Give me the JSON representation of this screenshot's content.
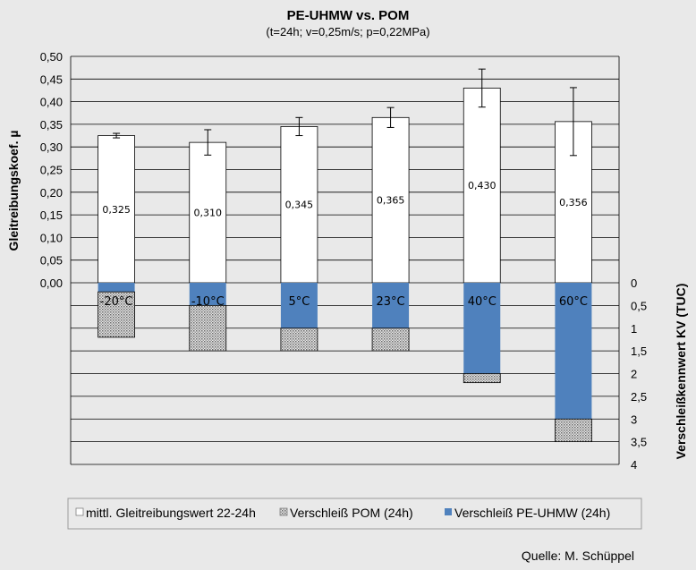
{
  "chart_data": {
    "type": "bar",
    "title": "PE-UHMW vs. POM",
    "subtitle": "(t=24h;  v=0,25m/s;  p=0,22MPa)",
    "ylabel": "Gleitreibungskoef. µ",
    "y2label": "Verschleißkennwert KV (TUC)",
    "categories": [
      "-20°C",
      "-10°C",
      "5°C",
      "23°C",
      "40°C",
      "60°C"
    ],
    "ylim": [
      0,
      0.5
    ],
    "y_ticks": [
      "0,00",
      "0,05",
      "0,10",
      "0,15",
      "0,20",
      "0,25",
      "0,30",
      "0,35",
      "0,40",
      "0,45",
      "0,50"
    ],
    "y2lim": [
      0,
      4
    ],
    "y2_ticks": [
      "0",
      "0,5",
      "1",
      "1,5",
      "2",
      "2,5",
      "3",
      "3,5",
      "4"
    ],
    "grid": true,
    "legend_position": "bottom",
    "series": [
      {
        "name": "mittl. Gleitreibungswert 22-24h",
        "values": [
          0.325,
          0.31,
          0.345,
          0.365,
          0.43,
          0.356
        ],
        "labels": [
          "0,325",
          "0,310",
          "0,345",
          "0,365",
          "0,430",
          "0,356"
        ],
        "error": [
          0.005,
          0.028,
          0.02,
          0.022,
          0.042,
          0.075
        ],
        "color": "#ffffff"
      },
      {
        "name": "Verschleiß POM (24h)",
        "values": [
          1.0,
          1.0,
          0.5,
          0.5,
          0.2,
          0.5
        ],
        "color": "#c9c9c9",
        "pattern": "dots"
      },
      {
        "name": "Verschleiß PE-UHMW (24h)",
        "values": [
          0.2,
          0.5,
          1.0,
          1.0,
          2.0,
          3.0
        ],
        "color": "#4f81bd"
      }
    ]
  },
  "source": "Quelle: M. Schüppel"
}
